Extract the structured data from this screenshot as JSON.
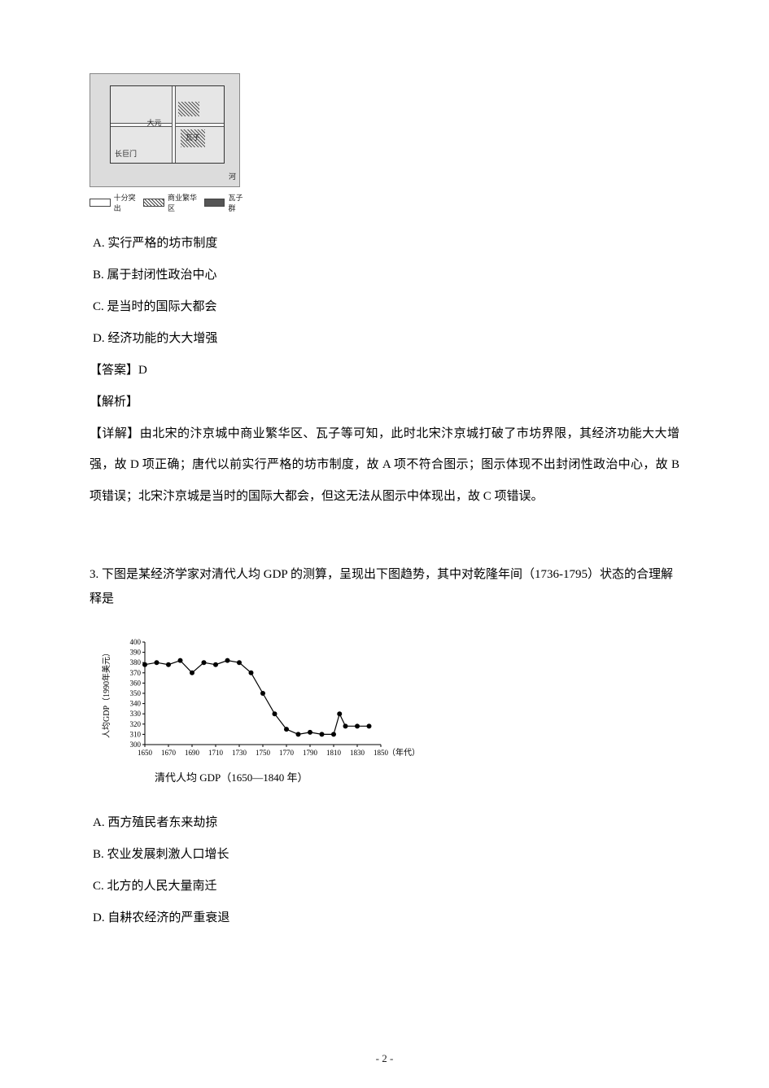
{
  "page_number": "- 2 -",
  "map": {
    "label_center": "大元",
    "label_gate": "长巨门",
    "label_wazi": "瓦子",
    "label_river": "河",
    "legend": {
      "road": "十分突出",
      "hatch": "商业繁华区",
      "solid": "瓦子群"
    }
  },
  "q2": {
    "options": {
      "A": "A.  实行严格的坊市制度",
      "B": "B.  属于封闭性政治中心",
      "C": "C.  是当时的国际大都会",
      "D": "D.  经济功能的大大增强"
    },
    "answer_label": "【答案】",
    "answer_value": "D",
    "analysis_label": "【解析】",
    "detail_label": "【详解】",
    "detail_body": "由北宋的汴京城中商业繁华区、瓦子等可知，此时北宋汴京城打破了市坊界限，其经济功能大大增强，故 D 项正确；唐代以前实行严格的坊市制度，故 A 项不符合图示；图示体现不出封闭性政治中心，故 B 项错误；北宋汴京城是当时的国际大都会，但这无法从图示中体现出，故 C 项错误。"
  },
  "q3": {
    "stem": "3. 下图是某经济学家对清代人均 GDP 的测算，呈现出下图趋势，其中对乾隆年间（1736-1795）状态的合理解释是",
    "chart": {
      "type": "line",
      "x_label": "（年代）",
      "y_label": "人均GDP（1990年美元）",
      "caption": "清代人均 GDP（1650—1840 年）",
      "x_ticks": [
        1650,
        1670,
        1690,
        1710,
        1730,
        1750,
        1770,
        1790,
        1810,
        1830,
        1850
      ],
      "y_ticks": [
        300,
        310,
        320,
        330,
        340,
        350,
        360,
        370,
        380,
        390,
        400
      ],
      "ylim": [
        300,
        400
      ],
      "xlim": [
        1650,
        1850
      ],
      "points": [
        [
          1650,
          378
        ],
        [
          1660,
          380
        ],
        [
          1670,
          378
        ],
        [
          1680,
          382
        ],
        [
          1690,
          370
        ],
        [
          1700,
          380
        ],
        [
          1710,
          378
        ],
        [
          1720,
          382
        ],
        [
          1730,
          380
        ],
        [
          1740,
          370
        ],
        [
          1750,
          350
        ],
        [
          1760,
          330
        ],
        [
          1770,
          315
        ],
        [
          1780,
          310
        ],
        [
          1790,
          312
        ],
        [
          1800,
          310
        ],
        [
          1810,
          310
        ],
        [
          1815,
          330
        ],
        [
          1820,
          318
        ],
        [
          1830,
          318
        ],
        [
          1840,
          318
        ]
      ],
      "line_color": "#000000",
      "marker_color": "#000000",
      "marker_size": 3,
      "line_width": 1.2,
      "background_color": "#ffffff",
      "axis_color": "#000000",
      "tick_fontsize": 9,
      "label_fontsize": 10
    },
    "options": {
      "A": "A.  西方殖民者东来劫掠",
      "B": "B.  农业发展刺激人口增长",
      "C": "C.  北方的人民大量南迁",
      "D": "D.  自耕农经济的严重衰退"
    }
  }
}
